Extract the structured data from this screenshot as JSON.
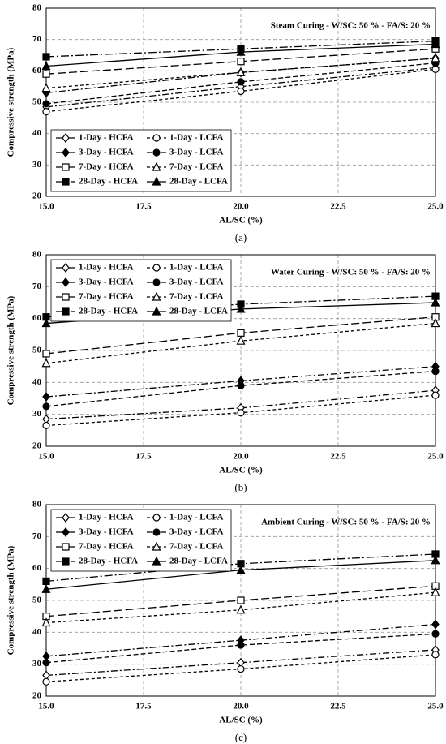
{
  "chart_data": [
    {
      "type": "line",
      "title": "Steam Curing - W/SC: 50 % - FA/S: 20 %",
      "caption": "(a)",
      "xlabel": "AL/SC (%)",
      "ylabel": "Compressive strength (MPa)",
      "x": [
        15,
        20,
        25
      ],
      "xlim": [
        15,
        25
      ],
      "ylim": [
        20,
        80
      ],
      "xticks": [
        {
          "value": 15,
          "label": "15.0"
        },
        17.5,
        {
          "value": 20,
          "label": "20.0"
        },
        22.5,
        {
          "value": 25,
          "label": "25.0"
        }
      ],
      "yticks": [
        20,
        30,
        40,
        50,
        60,
        70,
        80
      ],
      "grid": true,
      "legend": "lower left",
      "series": [
        {
          "name": "1-Day - HCFA",
          "color": "#000000",
          "marker": "diamond-open",
          "dash": "8 3 2 3",
          "values": [
            48.5,
            55,
            61
          ]
        },
        {
          "name": "1-Day - LCFA",
          "color": "#000000",
          "marker": "circle-open",
          "dash": "4 3",
          "values": [
            47,
            53.5,
            60.5
          ]
        },
        {
          "name": "3-Day - HCFA",
          "color": "#000000",
          "marker": "diamond",
          "dash": "8 3 2 3",
          "values": [
            53,
            59.5,
            64
          ]
        },
        {
          "name": "3-Day - LCFA",
          "color": "#000000",
          "marker": "circle",
          "dash": "6 3",
          "values": [
            49.5,
            56.5,
            62.5
          ]
        },
        {
          "name": "7-Day - HCFA",
          "color": "#000000",
          "marker": "square-open",
          "dash": "10 4",
          "values": [
            59,
            63,
            67
          ]
        },
        {
          "name": "7-Day - LCFA",
          "color": "#000000",
          "marker": "triangle-open",
          "dash": "4 3",
          "values": [
            54.5,
            59.5,
            64
          ]
        },
        {
          "name": "28-Day - HCFA",
          "color": "#000000",
          "marker": "square",
          "dash": "10 3 2 3",
          "values": [
            64.5,
            67,
            69.5
          ]
        },
        {
          "name": "28-Day - LCFA",
          "color": "#000000",
          "marker": "triangle",
          "dash": "none",
          "values": [
            61.5,
            66,
            68.5
          ]
        }
      ]
    },
    {
      "type": "line",
      "title": "Water Curing - W/SC: 50 % - FA/S: 20 %",
      "caption": "(b)",
      "xlabel": "AL/SC (%)",
      "ylabel": "Compressive strength (MPa)",
      "x": [
        15,
        20,
        25
      ],
      "xlim": [
        15,
        25
      ],
      "ylim": [
        20,
        80
      ],
      "xticks": [
        {
          "value": 15,
          "label": "15.0"
        },
        17.5,
        {
          "value": 20,
          "label": "20.0"
        },
        22.5,
        {
          "value": 25,
          "label": "25.0"
        }
      ],
      "yticks": [
        20,
        30,
        40,
        50,
        60,
        70,
        80
      ],
      "grid": true,
      "legend": "upper left",
      "series": [
        {
          "name": "1-Day - HCFA",
          "color": "#000000",
          "marker": "diamond-open",
          "dash": "8 3 2 3",
          "values": [
            28.5,
            32,
            37.5
          ]
        },
        {
          "name": "1-Day - LCFA",
          "color": "#000000",
          "marker": "circle-open",
          "dash": "4 3",
          "values": [
            26.5,
            30.5,
            36
          ]
        },
        {
          "name": "3-Day - HCFA",
          "color": "#000000",
          "marker": "diamond",
          "dash": "8 3 2 3",
          "values": [
            35.5,
            40.5,
            45
          ]
        },
        {
          "name": "3-Day - LCFA",
          "color": "#000000",
          "marker": "circle",
          "dash": "6 3",
          "values": [
            32.5,
            39,
            43.5
          ]
        },
        {
          "name": "7-Day - HCFA",
          "color": "#000000",
          "marker": "square-open",
          "dash": "10 4",
          "values": [
            49,
            55.5,
            60.5
          ]
        },
        {
          "name": "7-Day - LCFA",
          "color": "#000000",
          "marker": "triangle-open",
          "dash": "4 3",
          "values": [
            46,
            53,
            58.5
          ]
        },
        {
          "name": "28-Day - HCFA",
          "color": "#000000",
          "marker": "square",
          "dash": "10 3 2 3",
          "values": [
            60.5,
            64.5,
            67
          ]
        },
        {
          "name": "28-Day - LCFA",
          "color": "#000000",
          "marker": "triangle",
          "dash": "none",
          "values": [
            58.5,
            63,
            65
          ]
        }
      ]
    },
    {
      "type": "line",
      "title": "Ambient Curing - W/SC: 50 % - FA/S: 20 %",
      "caption": "(c)",
      "xlabel": "AL/SC (%)",
      "ylabel": "Compressive strength (MPa)",
      "x": [
        15,
        20,
        25
      ],
      "xlim": [
        15,
        25
      ],
      "ylim": [
        20,
        80
      ],
      "xticks": [
        {
          "value": 15,
          "label": "15.0"
        },
        17.5,
        {
          "value": 20,
          "label": "20.0"
        },
        22.5,
        {
          "value": 25,
          "label": "25.0"
        }
      ],
      "yticks": [
        20,
        30,
        40,
        50,
        60,
        70,
        80
      ],
      "grid": true,
      "legend": "upper left",
      "series": [
        {
          "name": "1-Day - HCFA",
          "color": "#000000",
          "marker": "diamond-open",
          "dash": "8 3 2 3",
          "values": [
            26.5,
            30.5,
            34.5
          ]
        },
        {
          "name": "1-Day - LCFA",
          "color": "#000000",
          "marker": "circle-open",
          "dash": "4 3",
          "values": [
            24.5,
            28.5,
            33
          ]
        },
        {
          "name": "3-Day - HCFA",
          "color": "#000000",
          "marker": "diamond",
          "dash": "8 3 2 3",
          "values": [
            32.5,
            37.5,
            42.5
          ]
        },
        {
          "name": "3-Day - LCFA",
          "color": "#000000",
          "marker": "circle",
          "dash": "6 3",
          "values": [
            30.5,
            36,
            39.5
          ]
        },
        {
          "name": "7-Day - HCFA",
          "color": "#000000",
          "marker": "square-open",
          "dash": "10 4",
          "values": [
            45,
            50,
            54.5
          ]
        },
        {
          "name": "7-Day - LCFA",
          "color": "#000000",
          "marker": "triangle-open",
          "dash": "4 3",
          "values": [
            43,
            47,
            52.5
          ]
        },
        {
          "name": "28-Day - HCFA",
          "color": "#000000",
          "marker": "square",
          "dash": "10 3 2 3",
          "values": [
            56,
            61.5,
            64.5
          ]
        },
        {
          "name": "28-Day - LCFA",
          "color": "#000000",
          "marker": "triangle",
          "dash": "none",
          "values": [
            53.5,
            59.5,
            62.5
          ]
        }
      ]
    }
  ]
}
